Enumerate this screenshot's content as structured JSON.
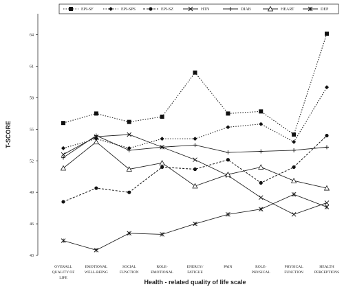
{
  "chart_data": {
    "type": "line",
    "title": "",
    "xlabel": "Health - related quality of life scale",
    "ylabel": "T-SCORE",
    "ylim": [
      43,
      66
    ],
    "yticks": [
      43,
      46,
      49,
      52,
      55,
      58,
      61,
      64
    ],
    "grid": false,
    "legend_position": "top",
    "categories": [
      [
        "OVERALL",
        "QUALITY OF",
        "LIFE"
      ],
      [
        "EMOTIONAL",
        "WELL-BEING"
      ],
      [
        "SOCIAL",
        "FUNCTION"
      ],
      [
        "ROLE-",
        "EMOTIONAL"
      ],
      [
        "ENERGY/",
        "FATIGUE"
      ],
      [
        "PAIN"
      ],
      [
        "ROLE-",
        "PHYSICAL"
      ],
      [
        "PHYSICAL",
        "FUNCTION"
      ],
      [
        "HEALTH",
        "PERCEPTIONS"
      ]
    ],
    "series": [
      {
        "name": "EPI-SF",
        "marker": "square",
        "dash": "dotted",
        "values": [
          55.6,
          56.5,
          55.7,
          56.2,
          60.4,
          56.5,
          56.7,
          54.5,
          64.1
        ]
      },
      {
        "name": "EPI-SPS",
        "marker": "diamond",
        "dash": "dotted",
        "values": [
          53.2,
          54.1,
          53.2,
          54.1,
          54.1,
          55.2,
          55.5,
          53.8,
          59.0
        ]
      },
      {
        "name": "EPI-SZ",
        "marker": "circle",
        "dash": "dashed",
        "values": [
          48.1,
          49.4,
          49.0,
          51.4,
          51.2,
          52.1,
          49.9,
          51.4,
          54.4
        ]
      },
      {
        "name": "HTN",
        "marker": "x",
        "dash": "solid",
        "values": [
          52.6,
          54.3,
          54.5,
          53.3,
          52.1,
          50.6,
          48.5,
          46.9,
          48.0
        ]
      },
      {
        "name": "DIAB",
        "marker": "plus",
        "dash": "solid",
        "values": [
          52.3,
          54.4,
          53.0,
          53.3,
          53.5,
          52.8,
          52.9,
          53.0,
          53.3
        ]
      },
      {
        "name": "HEART",
        "marker": "triangle",
        "dash": "solid",
        "values": [
          51.3,
          53.8,
          51.2,
          51.8,
          49.6,
          50.7,
          51.4,
          50.1,
          49.4
        ]
      },
      {
        "name": "DEP",
        "marker": "star",
        "dash": "solid",
        "values": [
          44.4,
          43.5,
          45.1,
          45.0,
          46.0,
          46.9,
          47.4,
          48.8,
          47.6
        ]
      }
    ]
  }
}
